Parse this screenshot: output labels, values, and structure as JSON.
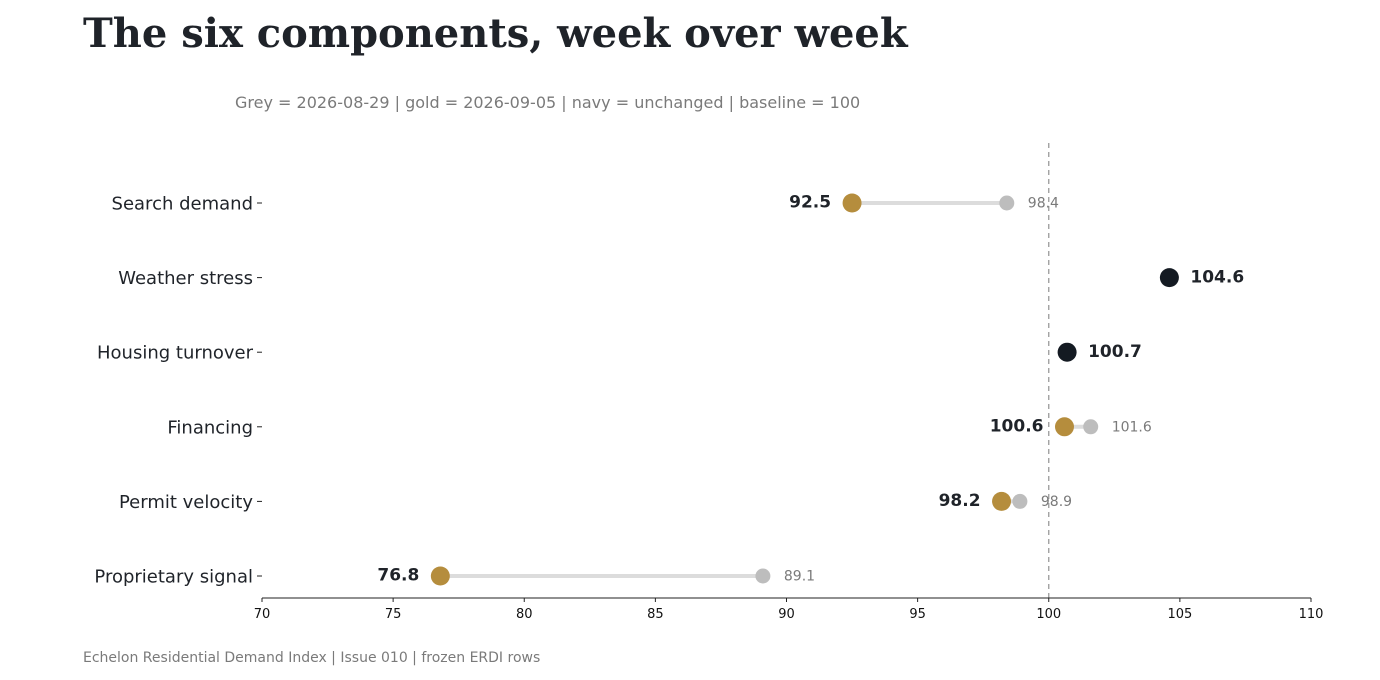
{
  "header": {
    "title": "The six components, week over week",
    "subtitle": "Grey = 2026-08-29  |  gold = 2026-09-05  |  navy = unchanged  |  baseline = 100"
  },
  "footer": {
    "text": "Echelon Residential Demand Index  |  Issue 010  |  frozen ERDI rows"
  },
  "colors": {
    "previous": "#bdbdbd",
    "current": "#b58d3d",
    "unchanged": "#141a22",
    "connector": "#dcdcdc",
    "baseline": "#9a9a9a"
  },
  "chart_data": {
    "type": "dot-plot",
    "series": [
      {
        "name": "2026-08-29"
      },
      {
        "name": "2026-09-05"
      }
    ],
    "categories": [
      "Search demand",
      "Weather stress",
      "Housing turnover",
      "Financing",
      "Permit velocity",
      "Proprietary signal"
    ],
    "rows": [
      {
        "label": "Search demand",
        "previous": 98.4,
        "current": 92.5,
        "previous_label": "98.4",
        "current_label": "92.5"
      },
      {
        "label": "Weather stress",
        "previous": 104.6,
        "current": 104.6,
        "previous_label": "",
        "current_label": "104.6"
      },
      {
        "label": "Housing turnover",
        "previous": 100.7,
        "current": 100.7,
        "previous_label": "",
        "current_label": "100.7"
      },
      {
        "label": "Financing",
        "previous": 101.6,
        "current": 100.6,
        "previous_label": "101.6",
        "current_label": "100.6"
      },
      {
        "label": "Permit velocity",
        "previous": 98.9,
        "current": 98.2,
        "previous_label": "98.9",
        "current_label": "98.2"
      },
      {
        "label": "Proprietary signal",
        "previous": 89.1,
        "current": 76.8,
        "previous_label": "89.1",
        "current_label": "76.8"
      }
    ],
    "xlim": [
      70,
      110
    ],
    "xticks": [
      "70",
      "75",
      "80",
      "85",
      "90",
      "95",
      "100",
      "105",
      "110"
    ],
    "baseline": 100,
    "grid": false,
    "xlabel": "",
    "ylabel": ""
  }
}
